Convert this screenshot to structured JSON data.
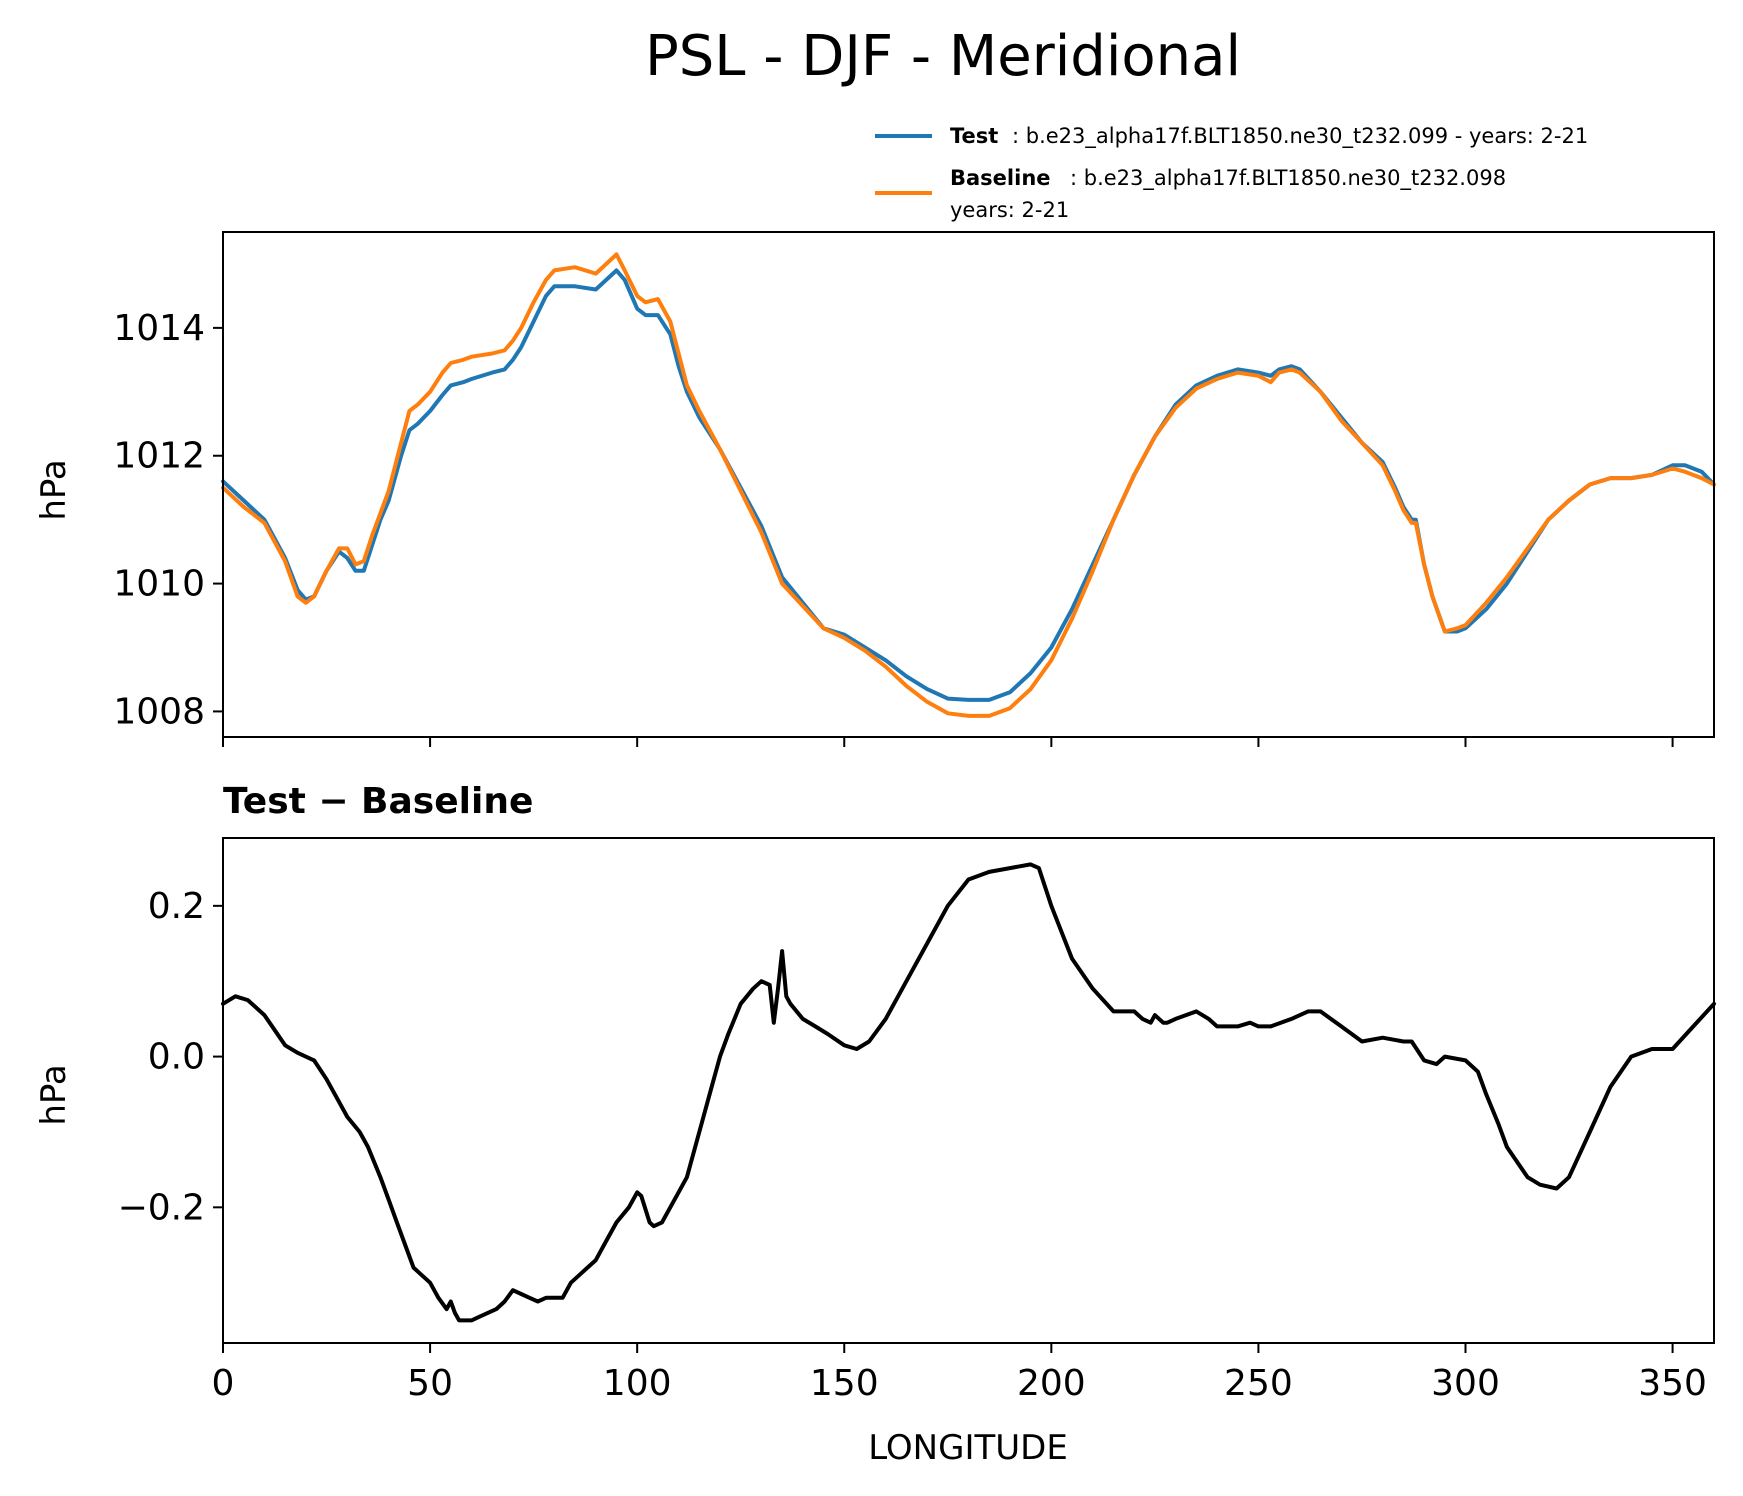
{
  "chart_data": [
    {
      "type": "line",
      "title": "PSL - DJF - Meridional",
      "ylabel": "hPa",
      "xlabel": "",
      "xlim": [
        0,
        360
      ],
      "ylim": [
        1007.6,
        1015.5
      ],
      "yticks": [
        1008,
        1010,
        1012,
        1014
      ],
      "ytick_labels": [
        "1008",
        "1010",
        "1012",
        "1014"
      ],
      "xticks": [
        0,
        50,
        100,
        150,
        200,
        250,
        300,
        350
      ],
      "legend": {
        "placement": "above-right",
        "entries": [
          {
            "label": "Test",
            "text": ": b.e23_alpha17f.BLT1850.ne30_t232.099 - years: 2-21",
            "text2": "",
            "color": "#1f77b4"
          },
          {
            "label": "Baseline",
            "text": ": b.e23_alpha17f.BLT1850.ne30_t232.098",
            "text2": "years: 2-21",
            "color": "#ff7f0e"
          }
        ]
      },
      "series": [
        {
          "name": "Test",
          "color": "#1f77b4",
          "x": [
            0,
            5,
            10,
            15,
            18,
            20,
            22,
            25,
            28,
            30,
            32,
            34,
            36,
            38,
            40,
            43,
            45,
            47,
            50,
            53,
            55,
            58,
            60,
            65,
            68,
            70,
            72,
            75,
            78,
            80,
            85,
            90,
            95,
            97,
            100,
            102,
            105,
            108,
            110,
            112,
            115,
            120,
            125,
            130,
            135,
            140,
            145,
            150,
            155,
            160,
            165,
            170,
            175,
            180,
            185,
            190,
            195,
            200,
            205,
            210,
            215,
            220,
            225,
            230,
            235,
            240,
            245,
            250,
            253,
            255,
            258,
            260,
            265,
            270,
            275,
            280,
            283,
            285,
            287,
            288,
            290,
            292,
            295,
            298,
            300,
            305,
            310,
            315,
            320,
            325,
            330,
            335,
            340,
            345,
            350,
            353,
            357,
            360
          ],
          "values": [
            1011.6,
            1011.3,
            1011.0,
            1010.4,
            1009.9,
            1009.75,
            1009.8,
            1010.2,
            1010.5,
            1010.4,
            1010.2,
            1010.2,
            1010.6,
            1011.0,
            1011.3,
            1012.0,
            1012.4,
            1012.5,
            1012.7,
            1012.95,
            1013.1,
            1013.15,
            1013.2,
            1013.3,
            1013.35,
            1013.5,
            1013.7,
            1014.1,
            1014.5,
            1014.65,
            1014.65,
            1014.6,
            1014.9,
            1014.75,
            1014.3,
            1014.2,
            1014.2,
            1013.9,
            1013.4,
            1013.0,
            1012.6,
            1012.1,
            1011.5,
            1010.9,
            1010.1,
            1009.7,
            1009.3,
            1009.2,
            1009.0,
            1008.8,
            1008.55,
            1008.35,
            1008.2,
            1008.18,
            1008.18,
            1008.3,
            1008.6,
            1009.0,
            1009.6,
            1010.3,
            1011.0,
            1011.7,
            1012.3,
            1012.8,
            1013.1,
            1013.25,
            1013.35,
            1013.3,
            1013.25,
            1013.35,
            1013.4,
            1013.35,
            1013.0,
            1012.6,
            1012.2,
            1011.9,
            1011.5,
            1011.2,
            1011.0,
            1011.0,
            1010.3,
            1009.8,
            1009.25,
            1009.25,
            1009.3,
            1009.6,
            1010.0,
            1010.5,
            1011.0,
            1011.3,
            1011.55,
            1011.65,
            1011.65,
            1011.7,
            1011.85,
            1011.85,
            1011.75,
            1011.55
          ]
        },
        {
          "name": "Baseline",
          "color": "#ff7f0e",
          "x": [
            0,
            5,
            10,
            15,
            18,
            20,
            22,
            25,
            28,
            30,
            32,
            34,
            36,
            38,
            40,
            43,
            45,
            47,
            50,
            53,
            55,
            58,
            60,
            65,
            68,
            70,
            72,
            75,
            78,
            80,
            85,
            90,
            95,
            97,
            100,
            102,
            105,
            108,
            110,
            112,
            115,
            120,
            125,
            130,
            135,
            140,
            145,
            150,
            155,
            160,
            165,
            170,
            175,
            180,
            185,
            190,
            195,
            200,
            205,
            210,
            215,
            220,
            225,
            230,
            235,
            240,
            245,
            250,
            253,
            255,
            258,
            260,
            265,
            270,
            275,
            280,
            283,
            285,
            287,
            288,
            290,
            292,
            295,
            298,
            300,
            305,
            310,
            315,
            320,
            325,
            330,
            335,
            340,
            345,
            350,
            353,
            357,
            360
          ],
          "values": [
            1011.5,
            1011.2,
            1010.95,
            1010.35,
            1009.8,
            1009.7,
            1009.8,
            1010.2,
            1010.55,
            1010.55,
            1010.3,
            1010.35,
            1010.75,
            1011.1,
            1011.45,
            1012.2,
            1012.7,
            1012.8,
            1013.0,
            1013.3,
            1013.45,
            1013.5,
            1013.55,
            1013.6,
            1013.65,
            1013.8,
            1014.0,
            1014.4,
            1014.75,
            1014.9,
            1014.95,
            1014.85,
            1015.15,
            1014.9,
            1014.5,
            1014.4,
            1014.45,
            1014.1,
            1013.6,
            1013.1,
            1012.7,
            1012.1,
            1011.45,
            1010.8,
            1010.0,
            1009.65,
            1009.3,
            1009.15,
            1008.95,
            1008.7,
            1008.4,
            1008.15,
            1007.97,
            1007.93,
            1007.93,
            1008.05,
            1008.35,
            1008.8,
            1009.45,
            1010.2,
            1011.0,
            1011.7,
            1012.3,
            1012.75,
            1013.05,
            1013.2,
            1013.3,
            1013.25,
            1013.15,
            1013.3,
            1013.35,
            1013.3,
            1013.0,
            1012.55,
            1012.2,
            1011.85,
            1011.45,
            1011.15,
            1010.95,
            1010.95,
            1010.3,
            1009.8,
            1009.25,
            1009.3,
            1009.35,
            1009.7,
            1010.1,
            1010.55,
            1011.0,
            1011.3,
            1011.55,
            1011.65,
            1011.65,
            1011.7,
            1011.8,
            1011.75,
            1011.65,
            1011.55
          ]
        }
      ]
    },
    {
      "type": "line",
      "title": "Test − Baseline",
      "ylabel": "hPa",
      "xlabel": "LONGITUDE",
      "xlim": [
        0,
        360
      ],
      "ylim": [
        -0.38,
        0.29
      ],
      "yticks": [
        -0.2,
        0.0,
        0.2
      ],
      "ytick_labels": [
        "−0.2",
        "0.0",
        "0.2"
      ],
      "xticks": [
        0,
        50,
        100,
        150,
        200,
        250,
        300,
        350
      ],
      "xtick_labels": [
        "0",
        "50",
        "100",
        "150",
        "200",
        "250",
        "300",
        "350"
      ],
      "series": [
        {
          "name": "Test − Baseline",
          "color": "#000000",
          "x": [
            0,
            3,
            6,
            10,
            15,
            18,
            22,
            25,
            28,
            30,
            33,
            35,
            38,
            40,
            42,
            44,
            46,
            48,
            50,
            52,
            54,
            55,
            56,
            57,
            58,
            60,
            62,
            66,
            68,
            70,
            72,
            74,
            76,
            78,
            82,
            84,
            86,
            88,
            90,
            92,
            95,
            98,
            100,
            101,
            103,
            104,
            106,
            108,
            110,
            112,
            115,
            118,
            120,
            122,
            125,
            128,
            130,
            132,
            133,
            134,
            135,
            136,
            137,
            140,
            143,
            146,
            150,
            153,
            156,
            160,
            165,
            170,
            175,
            180,
            185,
            190,
            195,
            197,
            200,
            205,
            210,
            215,
            220,
            222,
            224,
            225,
            227,
            228,
            230,
            235,
            238,
            240,
            245,
            248,
            250,
            253,
            258,
            262,
            265,
            270,
            275,
            280,
            285,
            287,
            290,
            293,
            295,
            300,
            303,
            305,
            308,
            310,
            315,
            318,
            322,
            325,
            330,
            335,
            340,
            345,
            350,
            355,
            360
          ],
          "values": [
            0.07,
            0.08,
            0.075,
            0.055,
            0.015,
            0.005,
            -0.005,
            -0.03,
            -0.06,
            -0.08,
            -0.1,
            -0.12,
            -0.16,
            -0.19,
            -0.22,
            -0.25,
            -0.28,
            -0.29,
            -0.3,
            -0.32,
            -0.335,
            -0.325,
            -0.34,
            -0.35,
            -0.35,
            -0.35,
            -0.345,
            -0.335,
            -0.325,
            -0.31,
            -0.315,
            -0.32,
            -0.325,
            -0.32,
            -0.32,
            -0.3,
            -0.29,
            -0.28,
            -0.27,
            -0.25,
            -0.22,
            -0.2,
            -0.18,
            -0.185,
            -0.22,
            -0.225,
            -0.22,
            -0.2,
            -0.18,
            -0.16,
            -0.1,
            -0.04,
            0.0,
            0.03,
            0.07,
            0.09,
            0.1,
            0.095,
            0.045,
            0.09,
            0.14,
            0.08,
            0.07,
            0.05,
            0.04,
            0.03,
            0.015,
            0.01,
            0.02,
            0.05,
            0.1,
            0.15,
            0.2,
            0.235,
            0.245,
            0.25,
            0.255,
            0.25,
            0.2,
            0.13,
            0.09,
            0.06,
            0.06,
            0.05,
            0.045,
            0.055,
            0.045,
            0.045,
            0.05,
            0.06,
            0.05,
            0.04,
            0.04,
            0.045,
            0.04,
            0.04,
            0.05,
            0.06,
            0.06,
            0.04,
            0.02,
            0.025,
            0.02,
            0.02,
            -0.005,
            -0.01,
            0.0,
            -0.005,
            -0.02,
            -0.05,
            -0.09,
            -0.12,
            -0.16,
            -0.17,
            -0.175,
            -0.16,
            -0.1,
            -0.04,
            0.0,
            0.01,
            0.01,
            0.04,
            0.07
          ]
        }
      ]
    }
  ]
}
